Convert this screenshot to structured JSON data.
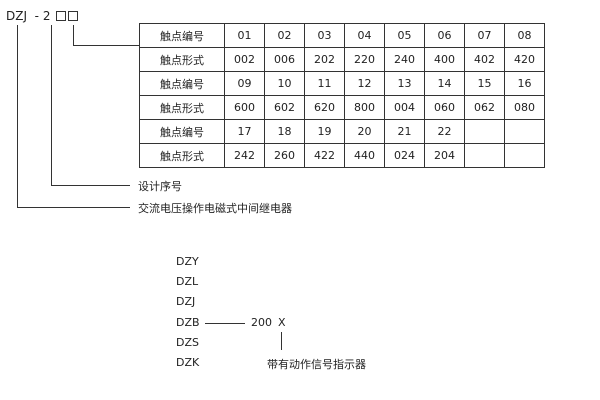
{
  "model": {
    "prefix": "DZJ",
    "dash": "-",
    "digit": "2"
  },
  "table": {
    "rows": [
      {
        "label": "触点编号",
        "cells": [
          "01",
          "02",
          "03",
          "04",
          "05",
          "06",
          "07",
          "08"
        ]
      },
      {
        "label": "触点形式",
        "cells": [
          "002",
          "006",
          "202",
          "220",
          "240",
          "400",
          "402",
          "420"
        ]
      },
      {
        "label": "触点编号",
        "cells": [
          "09",
          "10",
          "11",
          "12",
          "13",
          "14",
          "15",
          "16"
        ]
      },
      {
        "label": "触点形式",
        "cells": [
          "600",
          "602",
          "620",
          "800",
          "004",
          "060",
          "062",
          "080"
        ]
      },
      {
        "label": "触点编号",
        "cells": [
          "17",
          "18",
          "19",
          "20",
          "21",
          "22",
          "",
          ""
        ]
      },
      {
        "label": "触点形式",
        "cells": [
          "242",
          "260",
          "422",
          "440",
          "024",
          "204",
          "",
          ""
        ]
      }
    ]
  },
  "labels": {
    "design_no": "设计序号",
    "relay_type": "交流电压操作电磁式中间继电器"
  },
  "series": [
    "DZY",
    "DZL",
    "DZJ",
    "DZB",
    "DZS",
    "DZK"
  ],
  "suffix": {
    "code": "200",
    "x": "X",
    "note": "带有动作信号指示器"
  }
}
